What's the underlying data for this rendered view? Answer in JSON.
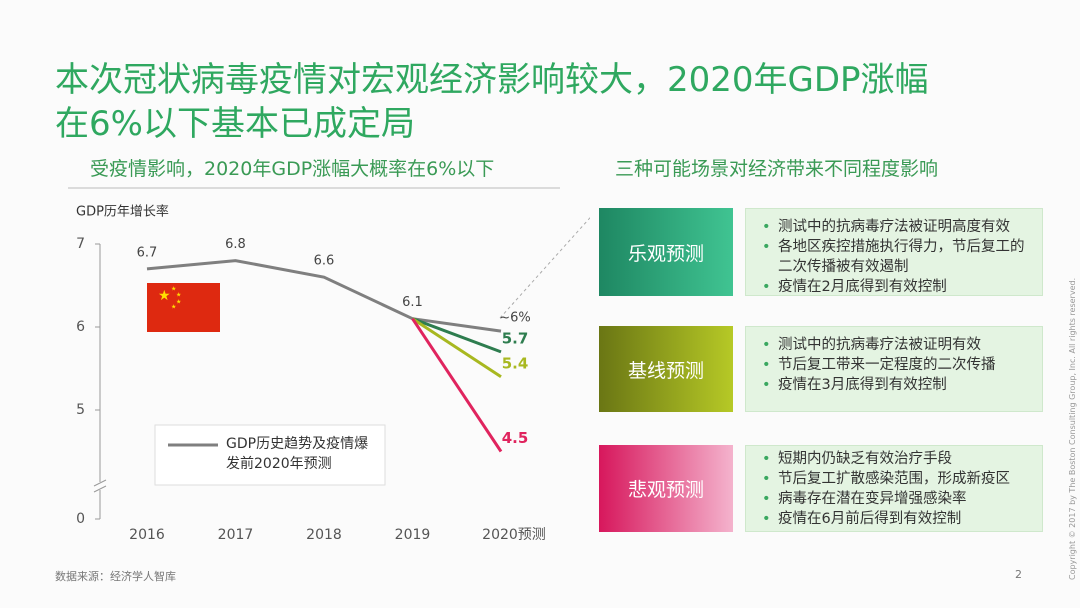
{
  "title": [
    "本次冠状病毒疫情对宏观经济影响较大，2020年GDP涨幅",
    "在6%以下基本已成定局"
  ],
  "left_subtitle": "受疫情影响，2020年GDP涨幅大概率在6%以下",
  "right_subtitle": "三种可能场景对经济带来不同程度影响",
  "chart_data": {
    "type": "line",
    "y_label": "GDP历年增长率",
    "categories": [
      "2016",
      "2017",
      "2018",
      "2019",
      "2020预测"
    ],
    "ylim": [
      0,
      7
    ],
    "yticks": [
      0,
      5,
      6,
      7
    ],
    "axis_break": true,
    "series": [
      {
        "name": "GDP历史趋势及疫情爆发前2020年预测",
        "color": "#7f7f7f",
        "values": [
          6.7,
          6.8,
          6.6,
          6.1,
          5.95
        ],
        "value_labels": [
          "6.7",
          "6.8",
          "6.6",
          "6.1",
          "~6%"
        ]
      },
      {
        "color": "#2e7d4f",
        "values": [
          null,
          null,
          null,
          6.1,
          5.7
        ],
        "data_labels": "last"
      },
      {
        "color": "#a8b820",
        "values": [
          null,
          null,
          null,
          6.1,
          5.4
        ],
        "data_labels": "last"
      },
      {
        "color": "#e0245e",
        "values": [
          null,
          null,
          null,
          6.1,
          4.5
        ],
        "data_labels": "last"
      }
    ]
  },
  "scenarios": [
    {
      "name": "乐观预测",
      "bullets": [
        "测试中的抗病毒疗法被证明高度有效",
        "各地区疾控措施执行得力，节后复工的二次传播被有效遏制",
        "疫情在2月底得到有效控制"
      ]
    },
    {
      "name": "基线预测",
      "bullets": [
        "测试中的抗病毒疗法被证明有效",
        "节后复工带来一定程度的二次传播",
        "疫情在3月底得到有效控制"
      ]
    },
    {
      "name": "悲观预测",
      "bullets": [
        "短期内仍缺乏有效治疗手段",
        "节后复工扩散感染范围，形成新疫区",
        "病毒存在潜在变异增强感染率",
        "疫情在6月前后得到有效控制"
      ]
    }
  ],
  "source": "数据来源：经济学人智库",
  "page_number": "2",
  "copyright": "Copyright © 2017 by The Boston Consulting Group, Inc. All rights reserved."
}
